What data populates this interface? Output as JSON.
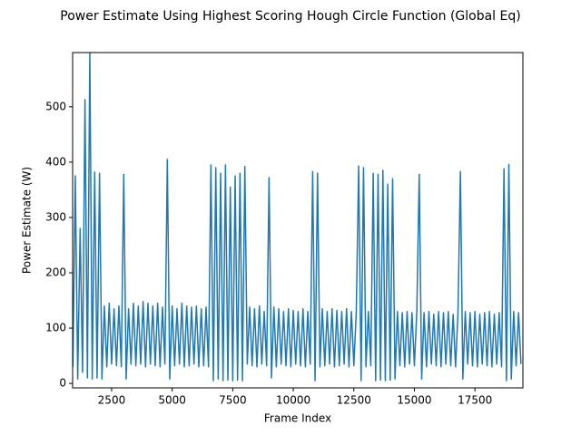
{
  "chart_data": {
    "type": "line",
    "title": "Power Estimate Using Highest Scoring Hough Circle Function (Global Eq)",
    "xlabel": "Frame Index",
    "ylabel": "Power Estimate (W)",
    "color": "#1f77b4",
    "xlim": [
      890,
      19480
    ],
    "ylim": [
      -8,
      598
    ],
    "xticks": [
      2500,
      5000,
      7500,
      10000,
      12500,
      15000,
      17500
    ],
    "yticks": [
      0,
      100,
      200,
      300,
      400,
      500
    ],
    "x": [
      900,
      1000,
      1100,
      1200,
      1300,
      1400,
      1500,
      1600,
      1700,
      1800,
      1900,
      2000,
      2100,
      2200,
      2300,
      2400,
      2500,
      2600,
      2700,
      2800,
      2900,
      3000,
      3100,
      3200,
      3300,
      3400,
      3500,
      3600,
      3700,
      3800,
      3900,
      4000,
      4100,
      4200,
      4300,
      4400,
      4500,
      4600,
      4700,
      4800,
      4900,
      5000,
      5100,
      5200,
      5300,
      5400,
      5500,
      5600,
      5700,
      5800,
      5900,
      6000,
      6100,
      6200,
      6300,
      6400,
      6500,
      6600,
      6700,
      6800,
      6900,
      7000,
      7100,
      7200,
      7300,
      7400,
      7500,
      7600,
      7700,
      7800,
      7900,
      8000,
      8100,
      8200,
      8300,
      8400,
      8500,
      8600,
      8700,
      8800,
      8900,
      9000,
      9100,
      9200,
      9300,
      9400,
      9500,
      9600,
      9700,
      9800,
      9900,
      10000,
      10100,
      10200,
      10300,
      10400,
      10500,
      10600,
      10700,
      10800,
      10900,
      11000,
      11100,
      11200,
      11300,
      11400,
      11500,
      11600,
      11700,
      11800,
      11900,
      12000,
      12100,
      12200,
      12300,
      12400,
      12500,
      12600,
      12700,
      12800,
      12900,
      13000,
      13100,
      13200,
      13300,
      13400,
      13500,
      13600,
      13700,
      13800,
      13900,
      14000,
      14100,
      14200,
      14300,
      14400,
      14500,
      14600,
      14700,
      14800,
      14900,
      15000,
      15100,
      15200,
      15300,
      15400,
      15500,
      15600,
      15700,
      15800,
      15900,
      16000,
      16100,
      16200,
      16300,
      16400,
      16500,
      16600,
      16700,
      16800,
      16900,
      17000,
      17100,
      17200,
      17300,
      17400,
      17500,
      17600,
      17700,
      17800,
      17900,
      18000,
      18100,
      18200,
      18300,
      18400,
      18500,
      18600,
      18700,
      18800,
      18900,
      19000,
      19100,
      19200,
      19300,
      19400
    ],
    "values": [
      30,
      375,
      8,
      280,
      20,
      513,
      10,
      598,
      8,
      382,
      10,
      380,
      8,
      140,
      30,
      145,
      35,
      135,
      32,
      140,
      30,
      378,
      8,
      135,
      35,
      145,
      32,
      140,
      35,
      148,
      30,
      145,
      35,
      140,
      32,
      145,
      30,
      138,
      35,
      405,
      8,
      140,
      32,
      135,
      35,
      145,
      30,
      140,
      32,
      138,
      35,
      140,
      30,
      135,
      32,
      138,
      30,
      395,
      5,
      390,
      8,
      380,
      5,
      395,
      6,
      355,
      5,
      375,
      6,
      380,
      5,
      392,
      35,
      138,
      32,
      135,
      30,
      140,
      35,
      130,
      32,
      372,
      10,
      138,
      30,
      135,
      35,
      130,
      32,
      135,
      30,
      132,
      35,
      130,
      32,
      135,
      30,
      130,
      35,
      383,
      5,
      380,
      30,
      135,
      32,
      130,
      35,
      135,
      30,
      132,
      32,
      130,
      35,
      135,
      30,
      130,
      32,
      128,
      393,
      5,
      390,
      30,
      130,
      32,
      380,
      5,
      378,
      6,
      385,
      5,
      360,
      6,
      370,
      8,
      130,
      32,
      128,
      30,
      130,
      35,
      128,
      32,
      130,
      378,
      8,
      128,
      30,
      130,
      35,
      125,
      32,
      130,
      30,
      128,
      35,
      130,
      32,
      125,
      30,
      128,
      383,
      8,
      130,
      35,
      128,
      32,
      130,
      30,
      125,
      35,
      128,
      32,
      130,
      30,
      125,
      35,
      128,
      30,
      388,
      5,
      396,
      8,
      130,
      32,
      128,
      35
    ]
  }
}
